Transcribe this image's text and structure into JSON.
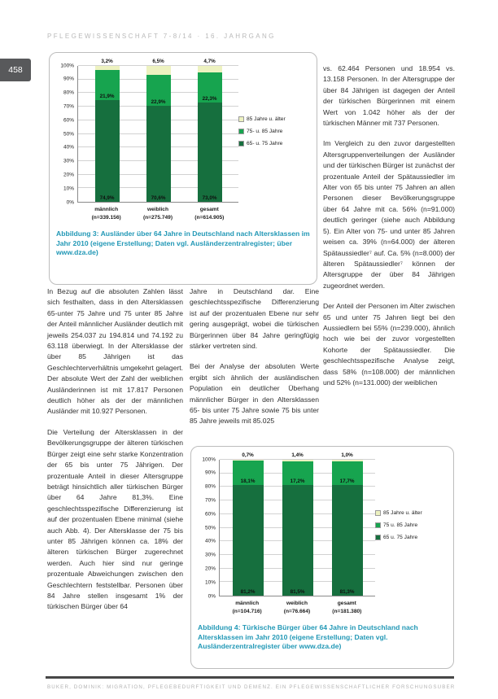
{
  "page": {
    "header": "PFLEGEWISSENSCHAFT 7-8/14 · 16. JAHRGANG",
    "page_number": "458",
    "footer_text": "BÜKER, DOMINIK: MIGRATION, PFLEGEBEDÜRFTIGKEIT UND DEMENZ. EIN PFLEGEWISSENSCHAFTLICHER FORSCHUNGSÜBERBLICK"
  },
  "colors": {
    "caption": "#2298b6",
    "badge_bg": "#58595b",
    "age_85_plus": "#edf2c0",
    "age_75_85": "#17a44f",
    "age_65_75": "#166f3e"
  },
  "columns": {
    "col1": [
      "In Bezug auf die absoluten Zahlen lässt sich festhalten, dass in den Altersklassen 65-unter 75 Jahre und 75 unter 85 Jahre der Anteil männlicher Ausländer deutlich mit jeweils 254.037 zu 194.814 und 74.192 zu 63.118 überwiegt. In der Altersklasse der über 85 Jährigen ist das Geschlechterverhältnis umgekehrt gelagert. Der absolute Wert der Zahl der weiblichen Ausländerinnen ist mit 17.817 Personen deutlich höher als der der männlichen Ausländer mit 10.927 Personen.",
      "Die Verteilung der Altersklassen in der Bevölkerungsgruppe der älteren türkischen Bürger zeigt eine sehr starke Konzentration der 65 bis unter 75 Jährigen. Der prozentuale Anteil in dieser Altersgruppe beträgt hinsichtlich aller türkischen Bürger über 64 Jahre 81,3%. Eine geschlechtsspezifische Differenzierung ist auf der prozentualen Ebene minimal (siehe auch Abb. 4). Der Altersklasse der 75 bis unter 85 Jährigen können ca. 18% der älteren türkischen Bürger zugerechnet werden. Auch hier sind nur geringe prozentuale Abweichungen zwischen den Geschlechtern feststellbar. Personen über 84 Jahre stellen insgesamt 1% der türkischen Bürger über 64"
    ],
    "col2": [
      "Jahre in Deutschland dar. Eine geschlechtsspezifische Differenzierung ist auf der prozentualen Ebene nur sehr gering ausgeprägt, wobei die türkischen Bürgerinnen über 84 Jahre geringfügig stärker vertreten sind.",
      "Bei der Analyse der absoluten Werte ergibt sich ähnlich der ausländischen Population ein deutlicher Überhang männlicher Bürger in den Altersklassen 65- bis unter 75 Jahre sowie 75 bis unter 85 Jahre jeweils mit 85.025"
    ],
    "col3": [
      "vs. 62.464 Personen und 18.954 vs. 13.158 Personen. In der Altersgruppe der über 84 Jährigen ist dagegen der Anteil der türkischen Bürgerinnen mit einem Wert von 1.042 höher als der der türkischen Männer mit 737 Personen.",
      "Im Vergleich zu den zuvor dargestellten Altersgruppenverteilungen der Ausländer und der türkischen Bürger ist zunächst der prozentuale Anteil der Spätaussiedler im Alter von 65 bis unter 75 Jahren an allen Personen dieser Bevölkerungsgruppe über 64 Jahre mit ca. 56% (n=91.000) deutlich geringer (siehe auch Abbildung 5). Ein Alter von 75- und unter 85 Jahren weisen ca. 39% (n=64.000) der älteren Spätaussiedler⁷ auf. Ca. 5% (n=8.000) der älteren Spätaussiedler⁷ können der Altersgruppe der über 84 Jährigen zugeordnet werden.",
      "Der Anteil der Personen im Alter zwischen 65 und unter 75 Jahren liegt bei den Aussiedlern bei 55% (n=239.000), ähnlich hoch wie bei der zuvor vorgestellten Kohorte der Spätaussiedler. Die geschlechtsspezifische Analyse zeigt, dass 58% (n=108.000) der männlichen und 52% (n=131.000) der weiblichen"
    ]
  },
  "chart_data": [
    {
      "type": "bar",
      "stacked": true,
      "title": "",
      "categories": [
        {
          "label": "männlich",
          "n": "(n=339.156)"
        },
        {
          "label": "weiblich",
          "n": "(n=275.749)"
        },
        {
          "label": "gesamt",
          "n": "(n=614.905)"
        }
      ],
      "series": [
        {
          "name": "85 Jahre u. älter",
          "color": "age_85_plus",
          "values": [
            3.2,
            6.5,
            4.7
          ],
          "labels": [
            "3,2%",
            "6,5%",
            "4,7%"
          ],
          "label_position": "above"
        },
        {
          "name": "75- u. 85 Jahre",
          "color": "age_75_85",
          "values": [
            21.9,
            22.9,
            22.3
          ],
          "labels": [
            "21,9%",
            "22,9%",
            "22,3%"
          ],
          "label_position": "inside-bottom"
        },
        {
          "name": "65- u. 75 Jahre",
          "color": "age_65_75",
          "values": [
            74.9,
            70.6,
            73.0
          ],
          "labels": [
            "74,9%",
            "70,6%",
            "73,0%"
          ],
          "label_position": "inside-bottom"
        }
      ],
      "y_ticks": [
        "100%",
        "90%",
        "80%",
        "70%",
        "60%",
        "50%",
        "40%",
        "30%",
        "20%",
        "10%",
        "0%"
      ],
      "ylim": [
        0,
        100
      ],
      "grid": true,
      "legend_position": "right",
      "caption": "Abbildung 3: Ausländer über 64 Jahre in Deutschland nach Altersklassen im Jahr 2010 (eigene Erstellung; Daten vgl. Ausländerzentralregister; über www.dza.de)"
    },
    {
      "type": "bar",
      "stacked": true,
      "title": "",
      "categories": [
        {
          "label": "männlich",
          "n": "(n=104.716)"
        },
        {
          "label": "weiblich",
          "n": "(n=76.664)"
        },
        {
          "label": "gesamt",
          "n": "(n=181.380)"
        }
      ],
      "series": [
        {
          "name": "85 Jahre u. älter",
          "color": "age_85_plus",
          "values": [
            0.7,
            1.4,
            1.0
          ],
          "labels": [
            "0,7%",
            "1,4%",
            "1,0%"
          ],
          "label_position": "above"
        },
        {
          "name": "75 u. 85 Jahre",
          "color": "age_75_85",
          "values": [
            18.1,
            17.2,
            17.7
          ],
          "labels": [
            "18,1%",
            "17,2%",
            "17,7%"
          ],
          "label_position": "inside-bottom"
        },
        {
          "name": "65 u. 75 Jahre",
          "color": "age_65_75",
          "values": [
            81.2,
            81.5,
            81.3
          ],
          "labels": [
            "81,2%",
            "81,5%",
            "81,3%"
          ],
          "label_position": "inside-bottom"
        }
      ],
      "y_ticks": [
        "100%",
        "90%",
        "80%",
        "70%",
        "60%",
        "50%",
        "40%",
        "30%",
        "20%",
        "10%",
        "0%"
      ],
      "ylim": [
        0,
        100
      ],
      "grid": true,
      "legend_position": "right",
      "caption": "Abbildung 4: Türkische Bürger über 64 Jahre in Deutschland nach Altersklassen im Jahr 2010 (eigene Erstellung; Daten vgl. Ausländerzentralregister über www.dza.de)"
    }
  ]
}
